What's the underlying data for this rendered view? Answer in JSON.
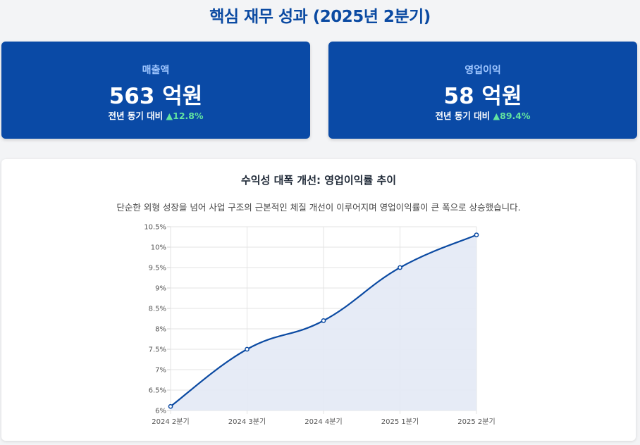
{
  "header": {
    "title": "핵심 재무 성과 (2025년 2분기)"
  },
  "kpis": [
    {
      "label": "매출액",
      "value": "563 억원",
      "compare_label": "전년 동기 대비",
      "change": "▲12.8%"
    },
    {
      "label": "영업이익",
      "value": "58 억원",
      "compare_label": "전년 동기 대비",
      "change": "▲89.4%"
    }
  ],
  "chart_card": {
    "title": "수익성 대폭 개선: 영업이익률 추이",
    "subtitle": "단순한 외형 성장을 넘어 사업 구조의 근본적인 체질 개선이 이루어지며 영업이익률이 큰 폭으로 상승했습니다."
  },
  "colors": {
    "brand": "#0a4aa6",
    "title": "#0b4aa2",
    "positive": "#62e3a0",
    "line": "#0b4aa2",
    "area_fill": "#e3e9f5"
  },
  "chart_data": {
    "type": "area",
    "title": "수익성 대폭 개선: 영업이익률 추이",
    "xlabel": "",
    "ylabel": "",
    "categories": [
      "2024 2분기",
      "2024 3분기",
      "2024 4분기",
      "2025 1분기",
      "2025 2분기"
    ],
    "series": [
      {
        "values": [
          6.1,
          7.5,
          8.2,
          9.5,
          10.3
        ]
      }
    ],
    "ylim": [
      6,
      10.5
    ],
    "yticks": [
      "6%",
      "6.5%",
      "7%",
      "7.5%",
      "8%",
      "8.5%",
      "9%",
      "9.5%",
      "10%",
      "10.5%"
    ],
    "grid": true,
    "legend": "none"
  }
}
